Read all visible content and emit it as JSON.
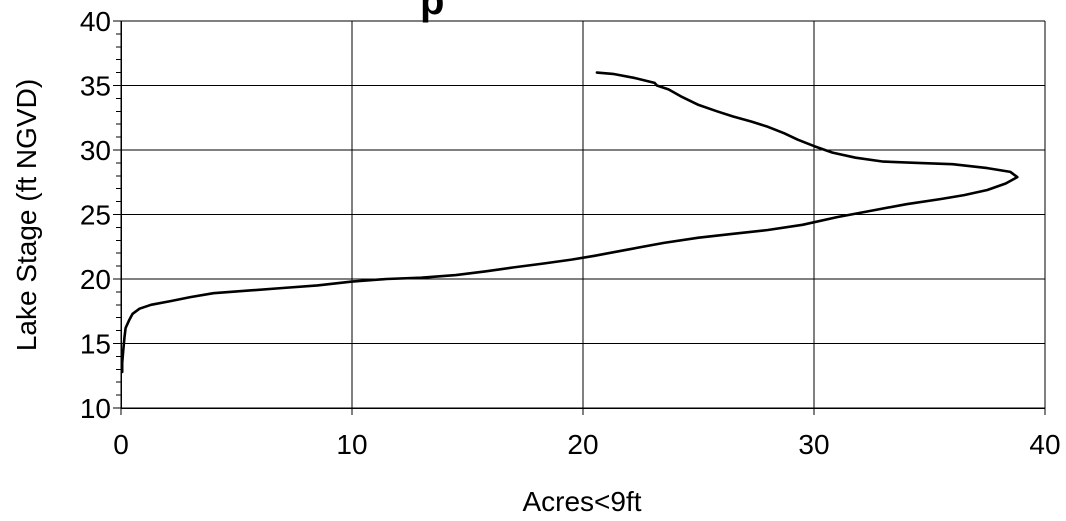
{
  "chart_data": {
    "type": "line",
    "title_fragment": "p",
    "xlabel": "Acres<9ft",
    "ylabel": "Lake Stage (ft NGVD)",
    "xlim": [
      0,
      40
    ],
    "ylim": [
      10,
      40
    ],
    "x_ticks": [
      0,
      10,
      20,
      30,
      40
    ],
    "y_ticks": [
      10,
      15,
      20,
      25,
      30,
      35,
      40
    ],
    "x_tick_labels": [
      "0",
      "10",
      "20",
      "30",
      "40"
    ],
    "y_tick_labels": [
      "10",
      "15",
      "20",
      "25",
      "30",
      "35",
      "40"
    ],
    "grid": true,
    "legend": false,
    "series": [
      {
        "points": [
          [
            0.05,
            12.8
          ],
          [
            0.05,
            13.5
          ],
          [
            0.1,
            14.5
          ],
          [
            0.15,
            15.5
          ],
          [
            0.2,
            16.2
          ],
          [
            0.35,
            16.8
          ],
          [
            0.5,
            17.3
          ],
          [
            0.8,
            17.7
          ],
          [
            1.3,
            18.0
          ],
          [
            2.2,
            18.3
          ],
          [
            3.0,
            18.6
          ],
          [
            4.0,
            18.9
          ],
          [
            5.5,
            19.1
          ],
          [
            7.0,
            19.3
          ],
          [
            8.5,
            19.5
          ],
          [
            10.0,
            19.8
          ],
          [
            11.5,
            20.0
          ],
          [
            13.0,
            20.1
          ],
          [
            14.5,
            20.3
          ],
          [
            15.8,
            20.6
          ],
          [
            17.0,
            20.9
          ],
          [
            18.3,
            21.2
          ],
          [
            19.5,
            21.5
          ],
          [
            20.5,
            21.8
          ],
          [
            22.0,
            22.3
          ],
          [
            23.5,
            22.8
          ],
          [
            25.0,
            23.2
          ],
          [
            26.5,
            23.5
          ],
          [
            28.0,
            23.8
          ],
          [
            29.5,
            24.2
          ],
          [
            31.0,
            24.8
          ],
          [
            32.5,
            25.3
          ],
          [
            34.0,
            25.8
          ],
          [
            35.5,
            26.2
          ],
          [
            36.5,
            26.5
          ],
          [
            37.5,
            26.9
          ],
          [
            38.3,
            27.4
          ],
          [
            38.8,
            27.9
          ],
          [
            38.5,
            28.3
          ],
          [
            37.5,
            28.6
          ],
          [
            36.0,
            28.9
          ],
          [
            34.5,
            29.0
          ],
          [
            33.0,
            29.1
          ],
          [
            31.8,
            29.4
          ],
          [
            30.8,
            29.8
          ],
          [
            30.0,
            30.3
          ],
          [
            29.3,
            30.8
          ],
          [
            28.7,
            31.3
          ],
          [
            28.0,
            31.8
          ],
          [
            27.3,
            32.2
          ],
          [
            26.5,
            32.6
          ],
          [
            25.8,
            33.0
          ],
          [
            25.0,
            33.5
          ],
          [
            24.3,
            34.1
          ],
          [
            23.7,
            34.7
          ],
          [
            23.2,
            35.0
          ],
          [
            23.1,
            35.2
          ],
          [
            22.2,
            35.6
          ],
          [
            21.3,
            35.9
          ],
          [
            20.6,
            36.0
          ]
        ]
      }
    ]
  }
}
